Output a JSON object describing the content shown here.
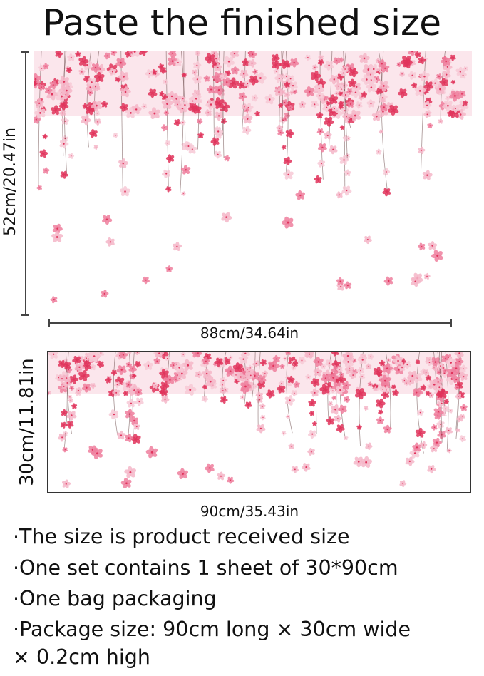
{
  "title": "Paste the finished size",
  "installed_view": {
    "height_label": "52cm/20.47in",
    "width_label": "88cm/34.64in"
  },
  "sheet_view": {
    "height_label": "30cm/11.81in",
    "width_label": "90cm/35.43in"
  },
  "details": [
    "·The size is product received size",
    "·One set contains 1 sheet of 30*90cm",
    "·One bag packaging",
    "·Package size: 90cm long × 30cm wide",
    "× 0.2cm high"
  ],
  "colors": {
    "blossom_light": "#f4b6c8",
    "blossom_mid": "#ee7f9e",
    "blossom_deep": "#e0345c",
    "stem": "#6b4a4a"
  }
}
